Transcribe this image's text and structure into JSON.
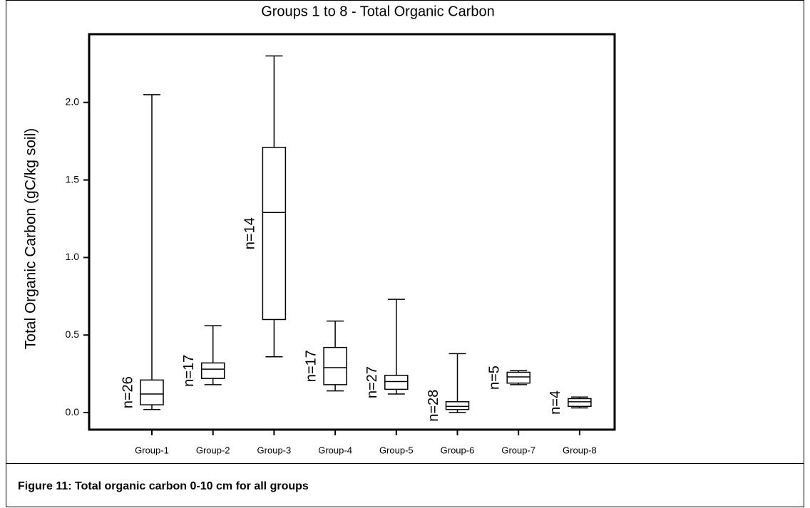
{
  "chart_data": {
    "type": "box",
    "title": "Groups 1 to 8 - Total Organic Carbon",
    "y_label": "Total Organic Carbon  (gC/kg soil)",
    "categories": [
      "Group-1",
      "Group-2",
      "Group-3",
      "Group-4",
      "Group-5",
      "Group-6",
      "Group-7",
      "Group-8"
    ],
    "min": [
      0.02,
      0.18,
      0.36,
      0.14,
      0.12,
      0.0,
      0.18,
      0.03
    ],
    "q1": [
      0.05,
      0.22,
      0.6,
      0.18,
      0.15,
      0.02,
      0.19,
      0.04
    ],
    "median": [
      0.12,
      0.28,
      1.29,
      0.29,
      0.2,
      0.04,
      0.23,
      0.07
    ],
    "q3": [
      0.21,
      0.32,
      1.71,
      0.42,
      0.24,
      0.07,
      0.26,
      0.09
    ],
    "max": [
      2.05,
      0.56,
      2.3,
      0.59,
      0.73,
      0.38,
      0.27,
      0.1
    ],
    "n_labels": [
      "n=26",
      "n=17",
      "n=14",
      "n=17",
      "n=27",
      "n=28",
      "n=5",
      "n=4"
    ],
    "color": "#000000",
    "ylim": [
      -0.11,
      2.44
    ],
    "yticks": [
      {
        "value": 0,
        "label": "0.0"
      },
      0.5,
      {
        "value": 1,
        "label": "1.0"
      },
      1.5,
      {
        "value": 2,
        "label": "2.0"
      }
    ]
  },
  "caption": "Figure 11: Total organic carbon 0-10 cm for all groups"
}
